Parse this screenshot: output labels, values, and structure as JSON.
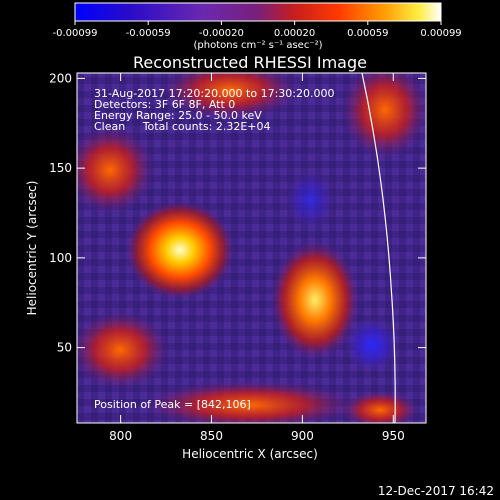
{
  "colorbar": {
    "ticks": [
      "-0.00099",
      "-0.00059",
      "-0.00020",
      "0.00020",
      "0.00059",
      "0.00099"
    ],
    "unit_label": "(photons cm⁻² s⁻¹ asec⁻²)",
    "colors": [
      "#0000ff",
      "#3b0dbf",
      "#6a2bb3",
      "#9a2aa0",
      "#c81e1e",
      "#ff2a00",
      "#ff7a00",
      "#ffbf00",
      "#ffff66",
      "#ffffff"
    ]
  },
  "title": "Reconstructed RHESSI Image",
  "info": {
    "time": "31-Aug-2017 17:20:20.000 to 17:30:20.000",
    "detectors": "Detectors: 3F 6F 8F, Att 0",
    "energy": "Energy Range: 25.0 - 50.0 keV",
    "clean": "Clean     Total counts: 2.32E+04",
    "peak": "Position of Peak = [842,106]"
  },
  "axes": {
    "xlabel": "Heliocentric X (arcsec)",
    "ylabel": "Heliocentric Y (arcsec)",
    "xticks": [
      "800",
      "850",
      "900",
      "950"
    ],
    "yticks": [
      "50",
      "100",
      "150",
      "200"
    ],
    "xlim": [
      776,
      968
    ],
    "ylim": [
      8,
      203
    ]
  },
  "footer": {
    "date": "12-Dec-2017 16:42"
  }
}
